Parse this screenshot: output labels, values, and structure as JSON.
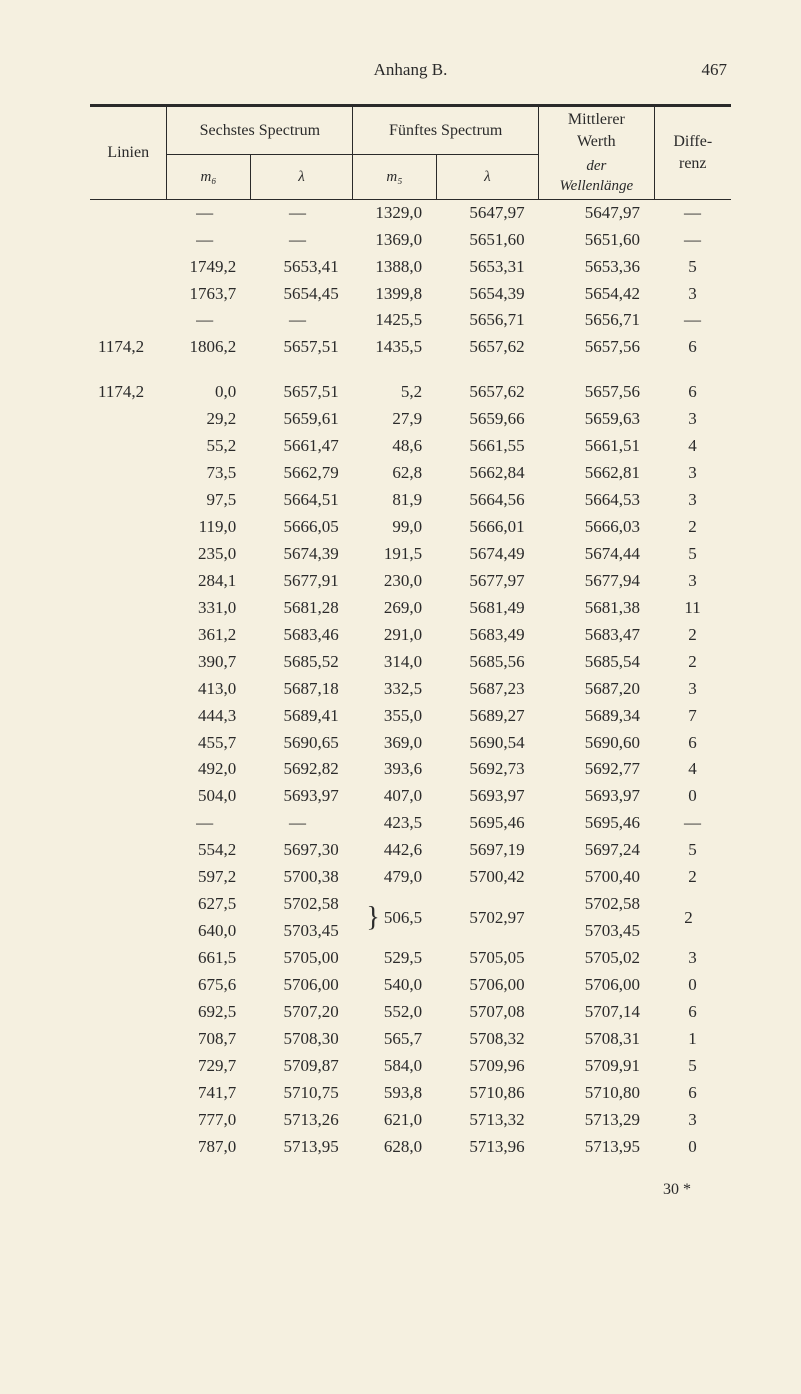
{
  "page": {
    "running_title": "Anhang B.",
    "page_number": "467",
    "signature": "30 *"
  },
  "colors": {
    "background": "#f5f0e0",
    "text": "#2a2a2a",
    "rule": "#2a2a2a"
  },
  "typography": {
    "body_family": "Times New Roman",
    "body_size_pt": 12,
    "header_size_pt": 11,
    "small_size_pt": 10
  },
  "table": {
    "col_widths_pct": [
      12,
      13,
      16,
      13,
      16,
      18,
      12
    ],
    "header": {
      "linien": "Linien",
      "spec6": "Sechstes Spectrum",
      "spec5": "Fünftes Spectrum",
      "mittlerer": "Mittlerer\nWerth",
      "differenz": "Diffe-\nrenz",
      "m6": "m₆",
      "lambda6": "λ",
      "m5": "m₅",
      "lambda5": "λ",
      "wellen": "der\nWellenlänge"
    },
    "groups": [
      {
        "linien": "1174,2",
        "rows": [
          {
            "m6": "—",
            "l6": "—",
            "m5": "1329,0",
            "l5": "5647,97",
            "mw": "5647,97",
            "d": "—"
          },
          {
            "m6": "—",
            "l6": "—",
            "m5": "1369,0",
            "l5": "5651,60",
            "mw": "5651,60",
            "d": "—"
          },
          {
            "m6": "1749,2",
            "l6": "5653,41",
            "m5": "1388,0",
            "l5": "5653,31",
            "mw": "5653,36",
            "d": "5"
          },
          {
            "m6": "1763,7",
            "l6": "5654,45",
            "m5": "1399,8",
            "l5": "5654,39",
            "mw": "5654,42",
            "d": "3"
          },
          {
            "m6": "—",
            "l6": "—",
            "m5": "1425,5",
            "l5": "5656,71",
            "mw": "5656,71",
            "d": "—"
          },
          {
            "m6": "1806,2",
            "l6": "5657,51",
            "m5": "1435,5",
            "l5": "5657,62",
            "mw": "5657,56",
            "d": "6"
          }
        ]
      },
      {
        "linien": "1174,2",
        "rows": [
          {
            "m6": "0,0",
            "l6": "5657,51",
            "m5": "5,2",
            "l5": "5657,62",
            "mw": "5657,56",
            "d": "6"
          },
          {
            "m6": "29,2",
            "l6": "5659,61",
            "m5": "27,9",
            "l5": "5659,66",
            "mw": "5659,63",
            "d": "3"
          },
          {
            "m6": "55,2",
            "l6": "5661,47",
            "m5": "48,6",
            "l5": "5661,55",
            "mw": "5661,51",
            "d": "4"
          },
          {
            "m6": "73,5",
            "l6": "5662,79",
            "m5": "62,8",
            "l5": "5662,84",
            "mw": "5662,81",
            "d": "3"
          },
          {
            "m6": "97,5",
            "l6": "5664,51",
            "m5": "81,9",
            "l5": "5664,56",
            "mw": "5664,53",
            "d": "3"
          },
          {
            "m6": "119,0",
            "l6": "5666,05",
            "m5": "99,0",
            "l5": "5666,01",
            "mw": "5666,03",
            "d": "2"
          },
          {
            "m6": "235,0",
            "l6": "5674,39",
            "m5": "191,5",
            "l5": "5674,49",
            "mw": "5674,44",
            "d": "5"
          },
          {
            "m6": "284,1",
            "l6": "5677,91",
            "m5": "230,0",
            "l5": "5677,97",
            "mw": "5677,94",
            "d": "3"
          },
          {
            "m6": "331,0",
            "l6": "5681,28",
            "m5": "269,0",
            "l5": "5681,49",
            "mw": "5681,38",
            "d": "11"
          },
          {
            "m6": "361,2",
            "l6": "5683,46",
            "m5": "291,0",
            "l5": "5683,49",
            "mw": "5683,47",
            "d": "2"
          },
          {
            "m6": "390,7",
            "l6": "5685,52",
            "m5": "314,0",
            "l5": "5685,56",
            "mw": "5685,54",
            "d": "2"
          },
          {
            "m6": "413,0",
            "l6": "5687,18",
            "m5": "332,5",
            "l5": "5687,23",
            "mw": "5687,20",
            "d": "3"
          },
          {
            "m6": "444,3",
            "l6": "5689,41",
            "m5": "355,0",
            "l5": "5689,27",
            "mw": "5689,34",
            "d": "7"
          },
          {
            "m6": "455,7",
            "l6": "5690,65",
            "m5": "369,0",
            "l5": "5690,54",
            "mw": "5690,60",
            "d": "6"
          },
          {
            "m6": "492,0",
            "l6": "5692,82",
            "m5": "393,6",
            "l5": "5692,73",
            "mw": "5692,77",
            "d": "4"
          },
          {
            "m6": "504,0",
            "l6": "5693,97",
            "m5": "407,0",
            "l5": "5693,97",
            "mw": "5693,97",
            "d": "0"
          },
          {
            "m6": "—",
            "l6": "—",
            "m5": "423,5",
            "l5": "5695,46",
            "mw": "5695,46",
            "d": "—"
          },
          {
            "m6": "554,2",
            "l6": "5697,30",
            "m5": "442,6",
            "l5": "5697,19",
            "mw": "5697,24",
            "d": "5"
          },
          {
            "m6": "597,2",
            "l6": "5700,38",
            "m5": "479,0",
            "l5": "5700,42",
            "mw": "5700,40",
            "d": "2"
          },
          {
            "m6": "627,5",
            "l6": "5702,58",
            "brace_m5": "506,5",
            "brace_l5": "5702,97",
            "mw": "5702,58",
            "d": "2",
            "brace_top": true
          },
          {
            "m6": "640,0",
            "l6": "5703,45",
            "mw": "5703,45",
            "d": "",
            "brace_bottom": true
          },
          {
            "m6": "661,5",
            "l6": "5705,00",
            "m5": "529,5",
            "l5": "5705,05",
            "mw": "5705,02",
            "d": "3"
          },
          {
            "m6": "675,6",
            "l6": "5706,00",
            "m5": "540,0",
            "l5": "5706,00",
            "mw": "5706,00",
            "d": "0"
          },
          {
            "m6": "692,5",
            "l6": "5707,20",
            "m5": "552,0",
            "l5": "5707,08",
            "mw": "5707,14",
            "d": "6"
          },
          {
            "m6": "708,7",
            "l6": "5708,30",
            "m5": "565,7",
            "l5": "5708,32",
            "mw": "5708,31",
            "d": "1"
          },
          {
            "m6": "729,7",
            "l6": "5709,87",
            "m5": "584,0",
            "l5": "5709,96",
            "mw": "5709,91",
            "d": "5"
          },
          {
            "m6": "741,7",
            "l6": "5710,75",
            "m5": "593,8",
            "l5": "5710,86",
            "mw": "5710,80",
            "d": "6"
          },
          {
            "m6": "777,0",
            "l6": "5713,26",
            "m5": "621,0",
            "l5": "5713,32",
            "mw": "5713,29",
            "d": "3"
          },
          {
            "m6": "787,0",
            "l6": "5713,95",
            "m5": "628,0",
            "l5": "5713,96",
            "mw": "5713,95",
            "d": "0"
          }
        ]
      }
    ]
  }
}
